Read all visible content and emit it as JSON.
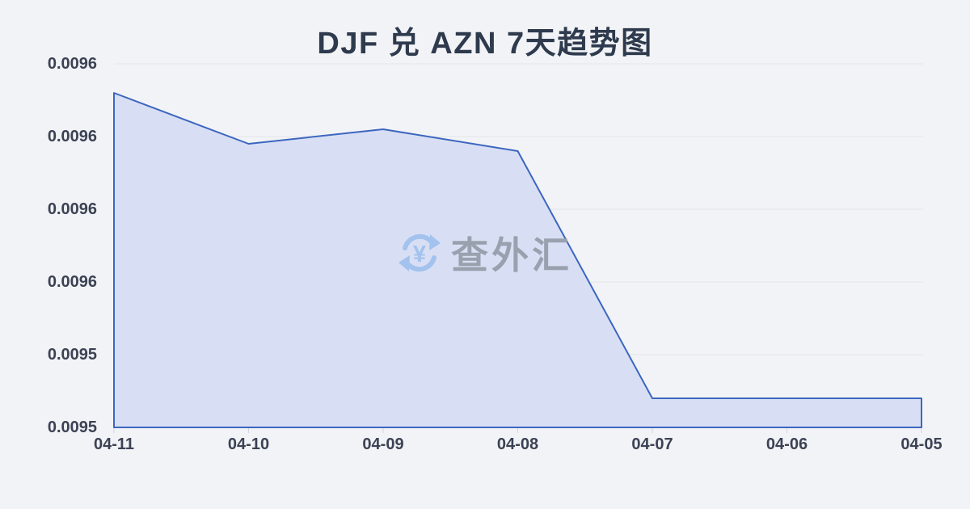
{
  "page": {
    "background": "#f2f3f6"
  },
  "title": "DJF 兑 AZN 7天趋势图",
  "watermark": {
    "text": "查外汇",
    "icon": "currency-exchange-refresh-yen"
  },
  "chart_data": {
    "type": "area",
    "title": "DJF 兑 AZN 7天趋势图",
    "categories": [
      "04-11",
      "04-10",
      "04-09",
      "04-08",
      "04-07",
      "04-06",
      "04-05"
    ],
    "series": [
      {
        "name": "DJF/AZN",
        "values": [
          0.009576,
          0.009569,
          0.009571,
          0.009568,
          0.009534,
          0.009534,
          0.009534
        ]
      }
    ],
    "xlabel": "",
    "ylabel": "",
    "ylim": [
      0.00953,
      0.00958
    ],
    "y_tick_labels": [
      "0.0096",
      "0.0096",
      "0.0096",
      "0.0096",
      "0.0095",
      "0.0095"
    ],
    "grid": true,
    "legend": false,
    "colors": {
      "line": "#3c66c0",
      "fill": "#d8dff4",
      "grid": "#e4e6ea",
      "tick": "#d2d6dd",
      "axis_text": "#3b4254",
      "title_text": "#2e3a4d",
      "watermark_text": "#99a1ae",
      "watermark_icon": "#a3c2ee",
      "background": "#f2f3f6"
    }
  }
}
